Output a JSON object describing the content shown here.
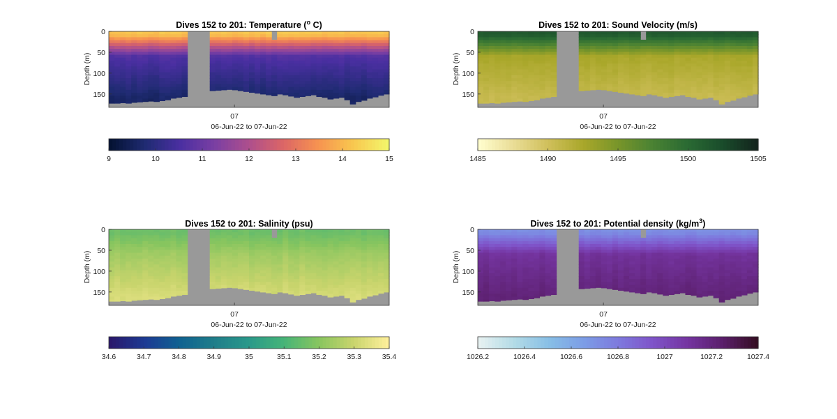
{
  "chart_data": [
    {
      "type": "heatmap",
      "id": "temperature",
      "title_main": "Dives 152 to 201: Temperature (",
      "title_sup": "o",
      "title_tail": " C)",
      "ylabel": "Depth (m)",
      "xlabel": "06-Jun-22 to 07-Jun-22",
      "xtick_labels": [
        "07"
      ],
      "yticks": [
        0,
        50,
        100,
        150
      ],
      "ylim": [
        0,
        182
      ],
      "colorbar": {
        "min": 9,
        "max": 15,
        "ticks": [
          "9",
          "10",
          "11",
          "12",
          "13",
          "14",
          "15"
        ],
        "colormap": "thermal",
        "reversed": false
      },
      "surface_value": 14.2,
      "mid_value": 10.6,
      "deep_value": 9.6,
      "gaps": [
        {
          "from": 0.28,
          "to": 0.355
        },
        {
          "from": 0.578,
          "to": 0.598,
          "start_depth": 20
        }
      ],
      "seafloor_depth": [
        172,
        172,
        171,
        172,
        170,
        169,
        168,
        167,
        168,
        166,
        164,
        160,
        158,
        156,
        152,
        148,
        146,
        144,
        142,
        141,
        140,
        139,
        140,
        142,
        144,
        146,
        148,
        150,
        152,
        154,
        150,
        152,
        155,
        158,
        156,
        154,
        152,
        156,
        158,
        162,
        160,
        158,
        164,
        174,
        168,
        165,
        160,
        157,
        153,
        150
      ]
    },
    {
      "type": "heatmap",
      "id": "sound-velocity",
      "title_main": "Dives 152 to 201: Sound Velocity (m/s)",
      "title_sup": "",
      "title_tail": "",
      "ylabel": "Depth (m)",
      "xlabel": "06-Jun-22 to 07-Jun-22",
      "xtick_labels": [
        "07"
      ],
      "yticks": [
        0,
        50,
        100,
        150
      ],
      "ylim": [
        0,
        182
      ],
      "colorbar": {
        "min": 1485,
        "max": 1505,
        "ticks": [
          "1485",
          "1490",
          "1495",
          "1500",
          "1505"
        ],
        "colormap": "speed",
        "reversed": false
      },
      "surface_value": 1501.5,
      "mid_value": 1492.5,
      "deep_value": 1490.5,
      "gaps": [
        {
          "from": 0.28,
          "to": 0.355
        },
        {
          "from": 0.578,
          "to": 0.598,
          "start_depth": 20
        }
      ],
      "seafloor_depth": [
        172,
        172,
        171,
        172,
        170,
        169,
        168,
        167,
        168,
        166,
        164,
        160,
        158,
        156,
        152,
        148,
        146,
        144,
        142,
        141,
        140,
        139,
        140,
        142,
        144,
        146,
        148,
        150,
        152,
        154,
        150,
        152,
        155,
        158,
        156,
        154,
        152,
        156,
        158,
        162,
        160,
        158,
        164,
        174,
        168,
        165,
        160,
        157,
        153,
        150
      ]
    },
    {
      "type": "heatmap",
      "id": "salinity",
      "title_main": "Dives 152 to 201: Salinity (psu)",
      "title_sup": "",
      "title_tail": "",
      "ylabel": "Depth (m)",
      "xlabel": "06-Jun-22 to 07-Jun-22",
      "xtick_labels": [
        "07"
      ],
      "yticks": [
        0,
        50,
        100,
        150
      ],
      "ylim": [
        0,
        182
      ],
      "colorbar": {
        "min": 34.6,
        "max": 35.4,
        "ticks": [
          "34.6",
          "34.7",
          "34.8",
          "34.9",
          "35",
          "35.1",
          "35.2",
          "35.3",
          "35.4"
        ],
        "colormap": "haline",
        "reversed": false
      },
      "surface_value": 35.16,
      "mid_value": 35.24,
      "deep_value": 35.33,
      "gaps": [
        {
          "from": 0.28,
          "to": 0.355
        },
        {
          "from": 0.578,
          "to": 0.598,
          "start_depth": 20
        }
      ],
      "seafloor_depth": [
        172,
        172,
        171,
        172,
        170,
        169,
        168,
        167,
        168,
        166,
        164,
        160,
        158,
        156,
        152,
        148,
        146,
        144,
        142,
        141,
        140,
        139,
        140,
        142,
        144,
        146,
        148,
        150,
        152,
        154,
        150,
        152,
        155,
        158,
        156,
        154,
        152,
        156,
        158,
        162,
        160,
        158,
        164,
        174,
        168,
        165,
        160,
        157,
        153,
        150
      ]
    },
    {
      "type": "heatmap",
      "id": "potential-density",
      "title_main": "Dives 152 to 201: Potential density (kg/m",
      "title_sup": "3",
      "title_tail": ")",
      "ylabel": "Depth (m)",
      "xlabel": "06-Jun-22 to 07-Jun-22",
      "xtick_labels": [
        "07"
      ],
      "yticks": [
        0,
        50,
        100,
        150
      ],
      "ylim": [
        0,
        182
      ],
      "colorbar": {
        "min": 1026.2,
        "max": 1027.4,
        "ticks": [
          "1026.2",
          "1026.4",
          "1026.6",
          "1026.8",
          "1027",
          "1027.2",
          "1027.4"
        ],
        "colormap": "dense",
        "reversed": false
      },
      "surface_value": 1026.72,
      "mid_value": 1027.12,
      "deep_value": 1027.22,
      "gaps": [
        {
          "from": 0.28,
          "to": 0.355
        },
        {
          "from": 0.578,
          "to": 0.598,
          "start_depth": 20
        }
      ],
      "seafloor_depth": [
        172,
        172,
        171,
        172,
        170,
        169,
        168,
        167,
        168,
        166,
        164,
        160,
        158,
        156,
        152,
        148,
        146,
        144,
        142,
        141,
        140,
        139,
        140,
        142,
        144,
        146,
        148,
        150,
        152,
        154,
        150,
        152,
        155,
        158,
        156,
        154,
        152,
        156,
        158,
        162,
        160,
        158,
        164,
        174,
        168,
        165,
        160,
        157,
        153,
        150
      ]
    }
  ],
  "colors": {
    "gap_gray": "#999999",
    "axis": "#333333"
  }
}
